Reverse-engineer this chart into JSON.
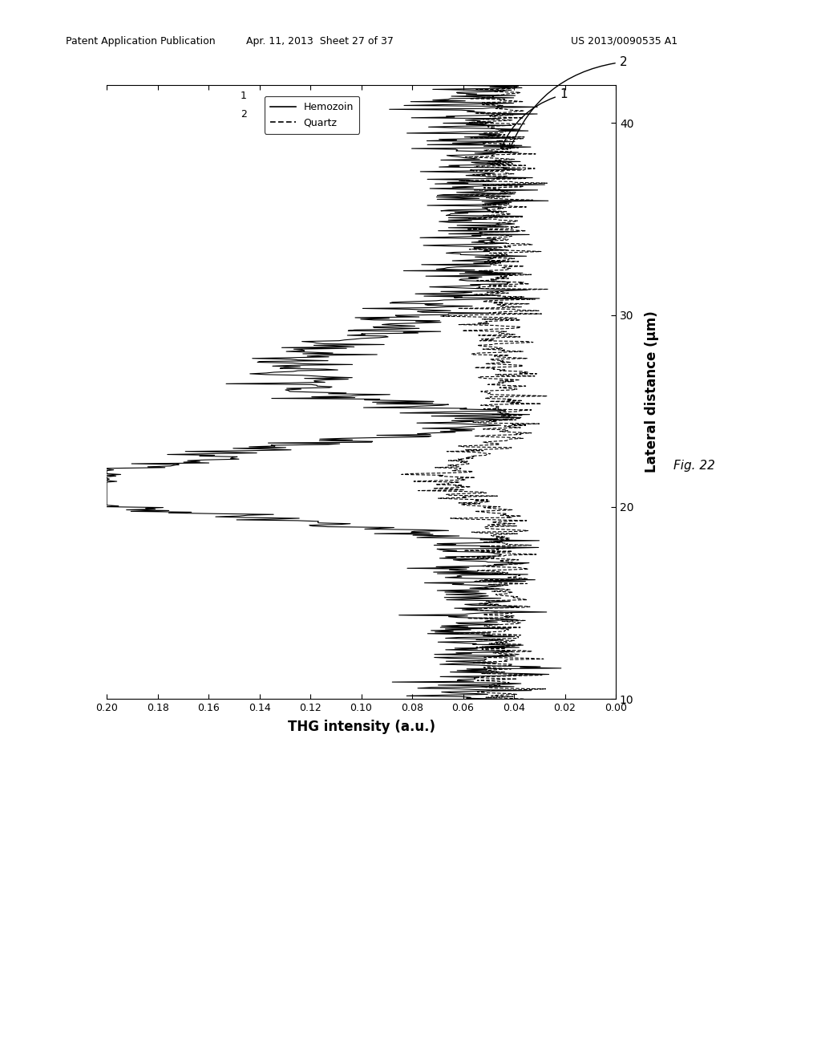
{
  "header_left": "Patent Application Publication",
  "header_mid": "Apr. 11, 2013  Sheet 27 of 37",
  "header_right": "US 2013/0090535 A1",
  "fig_label": "Fig. 22",
  "lateral_label": "Lateral distance (μm)",
  "thg_label": "THG intensity (a.u.)",
  "lateral_lim": [
    10,
    42
  ],
  "thg_lim": [
    0.0,
    0.2
  ],
  "lateral_ticks": [
    10,
    20,
    30,
    40
  ],
  "thg_ticks": [
    0.0,
    0.02,
    0.04,
    0.06,
    0.08,
    0.1,
    0.12,
    0.14,
    0.16,
    0.18,
    0.2
  ],
  "legend_labels": [
    "Hemozoin",
    "Quartz"
  ],
  "background_color": "#ffffff",
  "line_color": "#000000",
  "seed": 12345,
  "n_points": 800
}
